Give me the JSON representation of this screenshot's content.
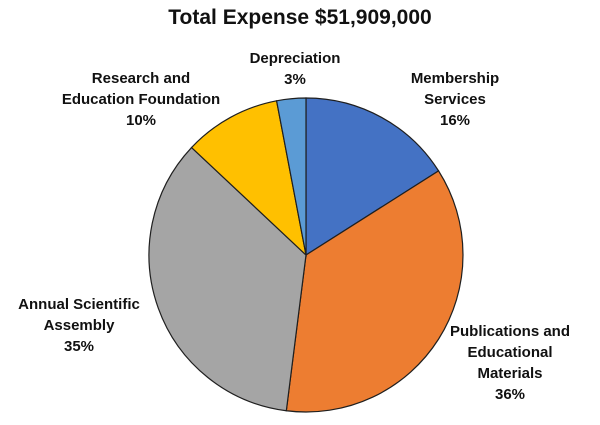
{
  "chart_data": {
    "type": "pie",
    "title": "Total Expense $51,909,000",
    "slices": [
      {
        "label_lines": [
          "Membership",
          "Services"
        ],
        "percent_label": "16%",
        "value": 16,
        "color": "#4472C4"
      },
      {
        "label_lines": [
          "Publications and",
          "Educational",
          "Materials"
        ],
        "percent_label": "36%",
        "value": 36,
        "color": "#ED7D31"
      },
      {
        "label_lines": [
          "Annual Scientific",
          "Assembly"
        ],
        "percent_label": "35%",
        "value": 35,
        "color": "#A5A5A5"
      },
      {
        "label_lines": [
          "Research and",
          "Education Foundation"
        ],
        "percent_label": "10%",
        "value": 10,
        "color": "#FFC000"
      },
      {
        "label_lines": [
          "Depreciation"
        ],
        "percent_label": "3%",
        "value": 3,
        "color": "#5B9BD5"
      }
    ]
  }
}
